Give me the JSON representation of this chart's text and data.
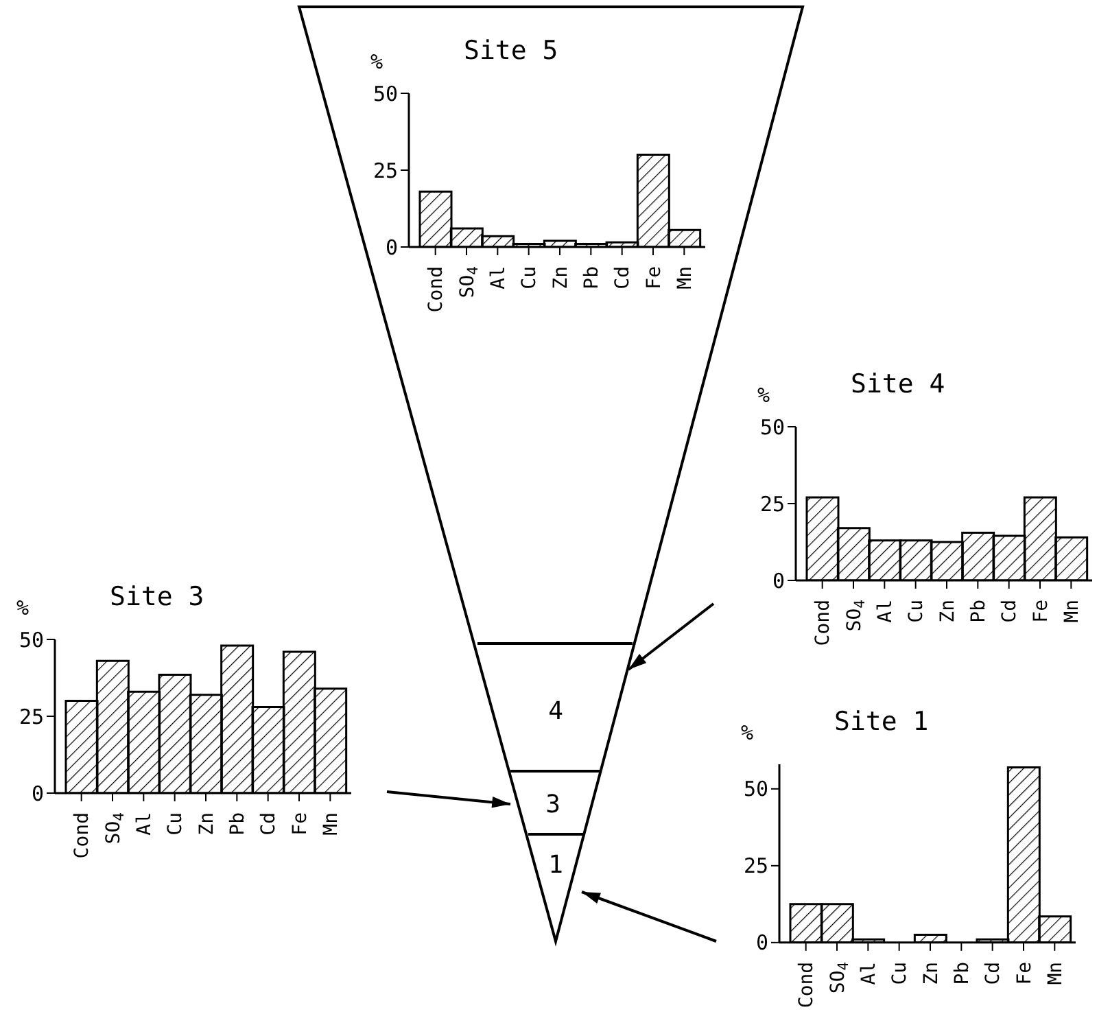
{
  "chart_data": [
    {
      "type": "bar",
      "title": "Site 5",
      "ylabel": "%",
      "categories": [
        "Cond",
        "SO$_{4}$",
        "Al",
        "Cu",
        "Zn",
        "Pb",
        "Cd",
        "Fe",
        "Mn"
      ],
      "values": [
        18,
        6,
        3.5,
        1,
        2,
        1,
        1.5,
        30,
        5.5
      ],
      "color": "#000000",
      "ylim": [
        0,
        50
      ],
      "yticks": [
        0,
        25,
        50
      ]
    },
    {
      "type": "bar",
      "title": "Site 4",
      "ylabel": "%",
      "categories": [
        "Cond",
        "SO$_{4}$",
        "Al",
        "Cu",
        "Zn",
        "Pb",
        "Cd",
        "Fe",
        "Mn"
      ],
      "values": [
        27,
        17,
        13,
        13,
        12.5,
        15.5,
        14.5,
        27,
        14
      ],
      "color": "#000000",
      "ylim": [
        0,
        50
      ],
      "yticks": [
        0,
        25,
        50
      ]
    },
    {
      "type": "bar",
      "title": "Site 3",
      "ylabel": "%",
      "categories": [
        "Cond",
        "SO$_{4}$",
        "Al",
        "Cu",
        "Zn",
        "Pb",
        "Cd",
        "Fe",
        "Mn"
      ],
      "values": [
        30,
        43,
        33,
        38.5,
        32,
        48,
        28,
        46,
        34
      ],
      "color": "#000000",
      "ylim": [
        0,
        50
      ],
      "yticks": [
        0,
        25,
        50
      ]
    },
    {
      "type": "bar",
      "title": "Site 1",
      "ylabel": "%",
      "categories": [
        "Cond",
        "SO$_{4}$",
        "Al",
        "Cu",
        "Zn",
        "Pb",
        "Cd",
        "Fe",
        "Mn"
      ],
      "values": [
        12.5,
        12.5,
        1,
        0,
        2.5,
        0,
        1,
        57,
        8.5
      ],
      "color": "#000000",
      "ylim": [
        0,
        58
      ],
      "yticks": [
        0,
        25,
        50
      ]
    },
    {
      "type": "other",
      "annotations": [
        "4",
        "3",
        "1"
      ]
    }
  ]
}
